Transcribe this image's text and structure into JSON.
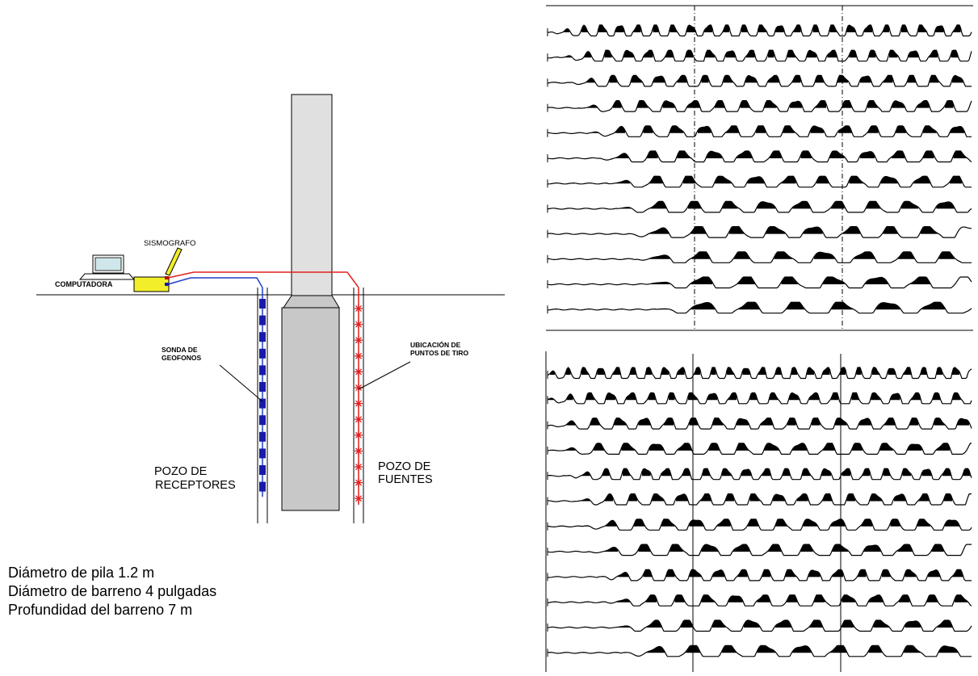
{
  "schematic": {
    "labels": {
      "sismografo": "SISMOGRAFO",
      "computadora": "COMPUTADORA",
      "sonda_line1": "SONDA DE",
      "sonda_line2": "GEOFONOS",
      "ubicacion_line1": "UBICACIÓN DE",
      "ubicacion_line2": "PUNTOS DE TIRO",
      "pozo_rec_line1": "POZO DE",
      "pozo_rec_line2": "RECEPTORES",
      "pozo_fue_line1": "POZO DE",
      "pozo_fue_line2": "FUENTES"
    },
    "colors": {
      "receiver_cable": "#1f3fd0",
      "source_cable": "#e02020",
      "geophone": "#1a1aa8",
      "shot_point": "#e02020",
      "seismograph": "#f2ee2a",
      "pile": "#c8c8c8",
      "pile_above": "#e0e0e0",
      "screen": "#cfe7ea"
    },
    "geophone_count": 12,
    "shot_point_count": 13
  },
  "notes": [
    "Diámetro de pila 1.2 m",
    "Diámetro de barreno 4 pulgadas",
    "Profundidad del barreno 7 m"
  ],
  "seismograms": {
    "top_trace_count": 12,
    "bottom_trace_count": 12,
    "trace_color": "#000000"
  }
}
